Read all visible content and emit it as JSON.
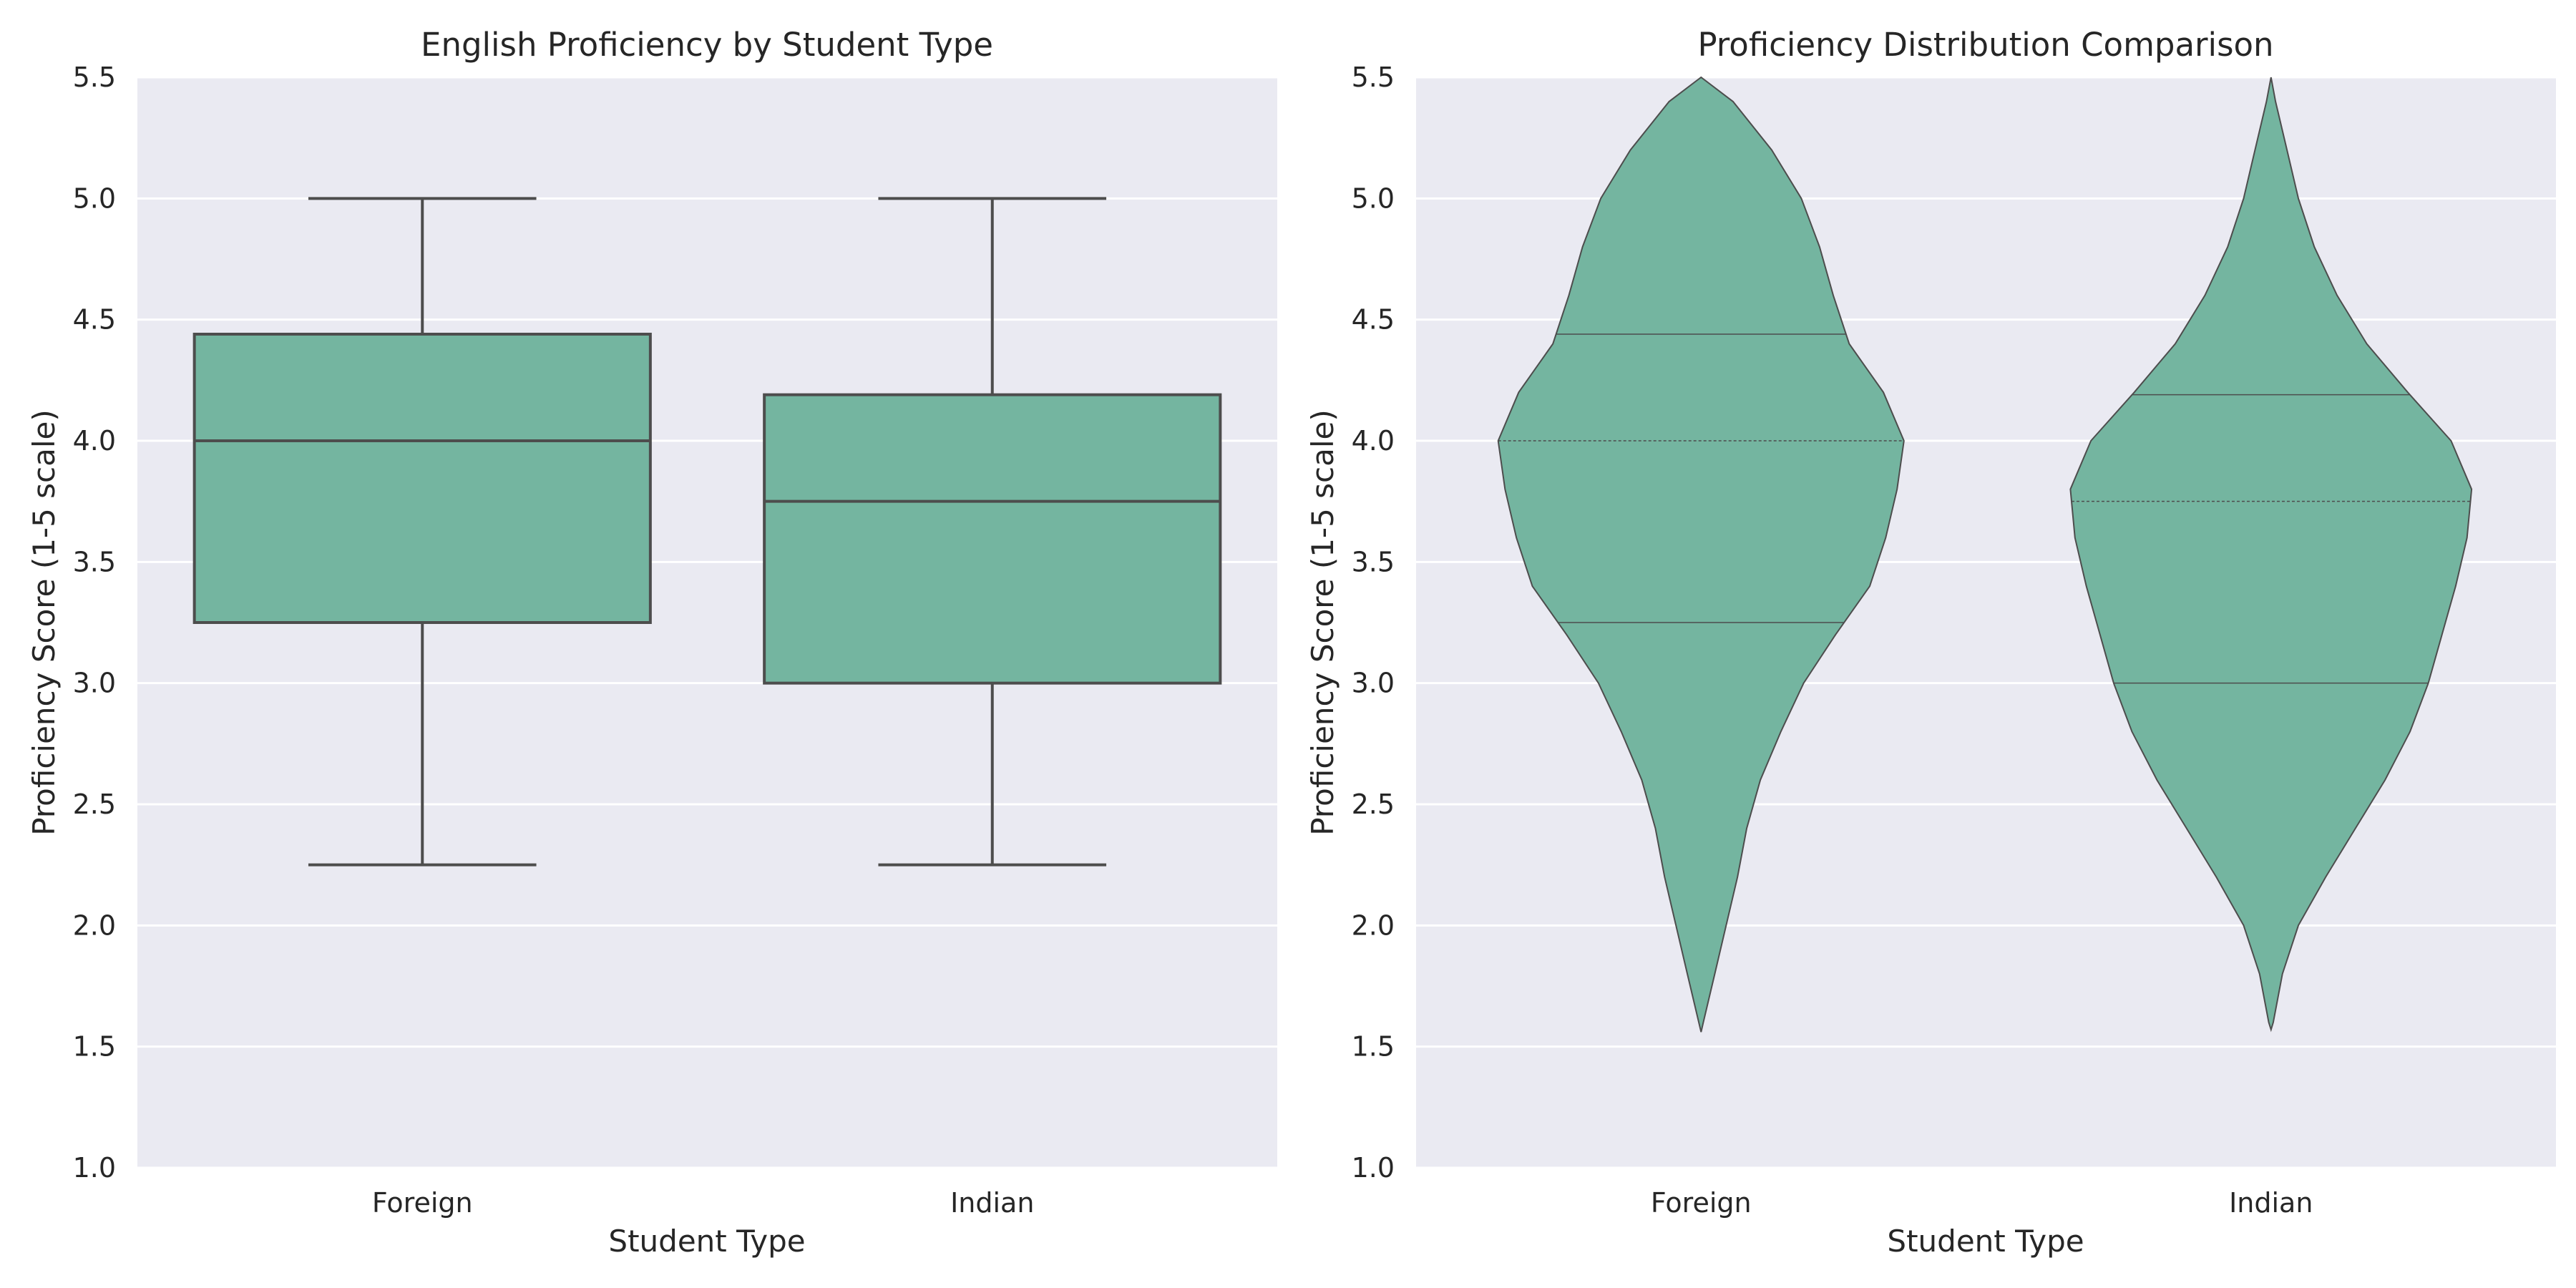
{
  "chart_data": [
    {
      "type": "box",
      "title": "English Proficiency by Student Type",
      "xlabel": "Student Type",
      "ylabel": "Proficiency Score (1-5 scale)",
      "ylim": [
        1.0,
        5.5
      ],
      "yticks": [
        "1.0",
        "1.5",
        "2.0",
        "2.5",
        "3.0",
        "3.5",
        "4.0",
        "4.5",
        "5.0",
        "5.5"
      ],
      "grid": true,
      "categories": [
        "Foreign",
        "Indian"
      ],
      "boxes": [
        {
          "category": "Foreign",
          "whisker_low": 2.25,
          "q1": 3.25,
          "median": 4.0,
          "q3": 4.44,
          "whisker_high": 5.0
        },
        {
          "category": "Indian",
          "whisker_low": 2.25,
          "q1": 3.0,
          "median": 3.75,
          "q3": 4.19,
          "whisker_high": 5.0
        }
      ],
      "colors": {
        "fill": "#74b5a0",
        "edge": "#4d4d4d",
        "background": "#eaeaf2",
        "grid": "#ffffff"
      }
    },
    {
      "type": "violin",
      "title": "Proficiency Distribution Comparison",
      "xlabel": "Student Type",
      "ylabel": "Proficiency Score (1-5 scale)",
      "ylim": [
        1.0,
        5.5
      ],
      "yticks": [
        "1.0",
        "1.5",
        "2.0",
        "2.5",
        "3.0",
        "3.5",
        "4.0",
        "4.5",
        "5.0",
        "5.5"
      ],
      "grid": true,
      "categories": [
        "Foreign",
        "Indian"
      ],
      "violins": [
        {
          "category": "Foreign",
          "quartiles": [
            3.25,
            4.0,
            4.44
          ],
          "profile": [
            [
              1.56,
              0.0
            ],
            [
              1.6,
              0.01
            ],
            [
              1.8,
              0.06
            ],
            [
              2.0,
              0.11
            ],
            [
              2.2,
              0.16
            ],
            [
              2.4,
              0.2
            ],
            [
              2.6,
              0.26
            ],
            [
              2.8,
              0.35
            ],
            [
              3.0,
              0.45
            ],
            [
              3.2,
              0.59
            ],
            [
              3.4,
              0.74
            ],
            [
              3.6,
              0.81
            ],
            [
              3.8,
              0.86
            ],
            [
              4.0,
              0.89
            ],
            [
              4.2,
              0.8
            ],
            [
              4.4,
              0.65
            ],
            [
              4.6,
              0.58
            ],
            [
              4.8,
              0.52
            ],
            [
              5.0,
              0.44
            ],
            [
              5.2,
              0.31
            ],
            [
              5.4,
              0.14
            ],
            [
              5.5,
              0.0
            ]
          ]
        },
        {
          "category": "Indian",
          "quartiles": [
            3.0,
            3.75,
            4.19
          ],
          "profile": [
            [
              1.57,
              0.0
            ],
            [
              1.6,
              0.01
            ],
            [
              1.8,
              0.05
            ],
            [
              2.0,
              0.12
            ],
            [
              2.2,
              0.24
            ],
            [
              2.4,
              0.37
            ],
            [
              2.6,
              0.5
            ],
            [
              2.8,
              0.61
            ],
            [
              3.0,
              0.69
            ],
            [
              3.2,
              0.75
            ],
            [
              3.4,
              0.81
            ],
            [
              3.6,
              0.86
            ],
            [
              3.8,
              0.88
            ],
            [
              4.0,
              0.79
            ],
            [
              4.2,
              0.6
            ],
            [
              4.4,
              0.42
            ],
            [
              4.6,
              0.29
            ],
            [
              4.8,
              0.19
            ],
            [
              5.0,
              0.12
            ],
            [
              5.2,
              0.07
            ],
            [
              5.4,
              0.02
            ],
            [
              5.5,
              0.0
            ]
          ]
        }
      ],
      "colors": {
        "fill": "#74b5a0",
        "edge": "#4d4d4d",
        "background": "#eaeaf2",
        "grid": "#ffffff"
      }
    }
  ]
}
